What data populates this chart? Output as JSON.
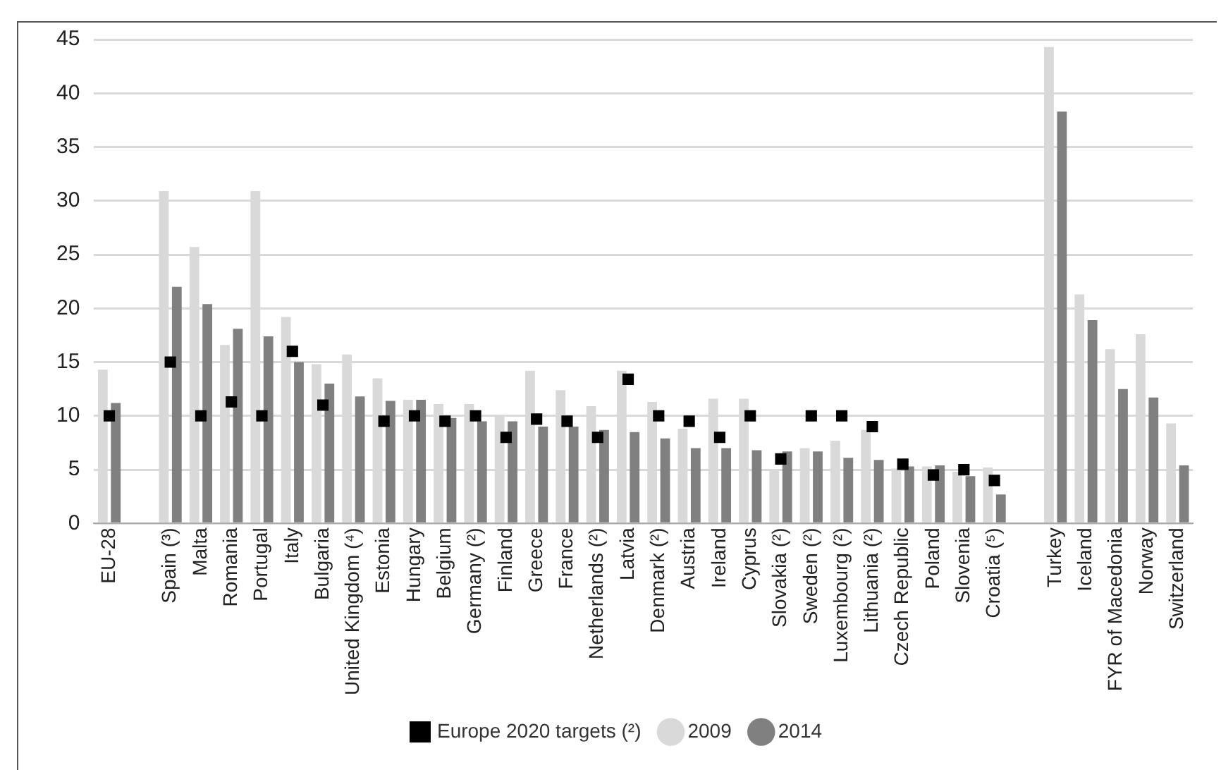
{
  "chart_data": {
    "type": "bar",
    "categories": [
      "EU-28",
      null,
      "Spain (³)",
      "Malta",
      "Romania",
      "Portugal",
      "Italy",
      "Bulgaria",
      "United Kingdom (⁴)",
      "Estonia",
      "Hungary",
      "Belgium",
      "Germany (²)",
      "Finland",
      "Greece",
      "France",
      "Netherlands (²)",
      "Latvia",
      "Denmark (²)",
      "Austria",
      "Ireland",
      "Cyprus",
      "Slovakia (²)",
      "Sweden (²)",
      "Luxembourg (²)",
      "Lithuania (²)",
      "Czech Republic",
      "Poland",
      "Slovenia",
      "Croatia (⁵)",
      null,
      "Turkey",
      "Iceland",
      "FYR of Macedonia",
      "Norway",
      "Switzerland"
    ],
    "series": [
      {
        "name": "2009",
        "color": "#d9d9d9",
        "values": [
          14.3,
          null,
          30.9,
          25.7,
          16.6,
          30.9,
          19.2,
          14.8,
          15.7,
          13.5,
          11.5,
          11.1,
          11.1,
          10.0,
          14.2,
          12.4,
          10.9,
          14.2,
          11.3,
          8.8,
          11.6,
          11.6,
          5.0,
          7.0,
          7.7,
          8.7,
          5.1,
          5.3,
          4.8,
          5.2,
          null,
          44.3,
          21.3,
          16.2,
          17.6,
          9.3
        ]
      },
      {
        "name": "2014",
        "color": "#808080",
        "values": [
          11.2,
          null,
          22.0,
          20.4,
          18.1,
          17.4,
          15.0,
          13.0,
          11.8,
          11.4,
          11.5,
          9.8,
          9.5,
          9.5,
          9.0,
          9.0,
          8.7,
          8.5,
          7.9,
          7.0,
          7.0,
          6.8,
          6.7,
          6.7,
          6.1,
          5.9,
          5.3,
          5.4,
          4.4,
          2.7,
          null,
          38.3,
          18.9,
          12.5,
          11.7,
          5.4
        ]
      },
      {
        "name": "Europe 2020 targets (²)",
        "type": "scatter",
        "marker": "square",
        "color": "#000000",
        "x": [
          "EU-28",
          "Spain (³)",
          "Malta",
          "Romania",
          "Portugal",
          "Italy",
          "Bulgaria",
          "Estonia",
          "Hungary",
          "Belgium",
          "Germany (²)",
          "Finland",
          "Greece",
          "France",
          "Netherlands (²)",
          "Latvia",
          "Denmark (²)",
          "Austria",
          "Ireland",
          "Cyprus",
          "Slovakia (²)",
          "Sweden (²)",
          "Luxembourg (²)",
          "Lithuania (²)",
          "Czech Republic",
          "Poland",
          "Slovenia",
          "Croatia (⁵)"
        ],
        "values": [
          10,
          15,
          10,
          11.3,
          10,
          16,
          11,
          9.5,
          10,
          9.5,
          10,
          8,
          9.7,
          9.5,
          8,
          13.4,
          10,
          9.5,
          8,
          10,
          6,
          10,
          10,
          9,
          5.5,
          4.5,
          5,
          4
        ]
      }
    ],
    "ylim": [
      0,
      45
    ],
    "yticks": [
      0,
      5,
      10,
      15,
      20,
      25,
      30,
      35,
      40,
      45
    ],
    "grid": "y",
    "legend": "bottom"
  }
}
